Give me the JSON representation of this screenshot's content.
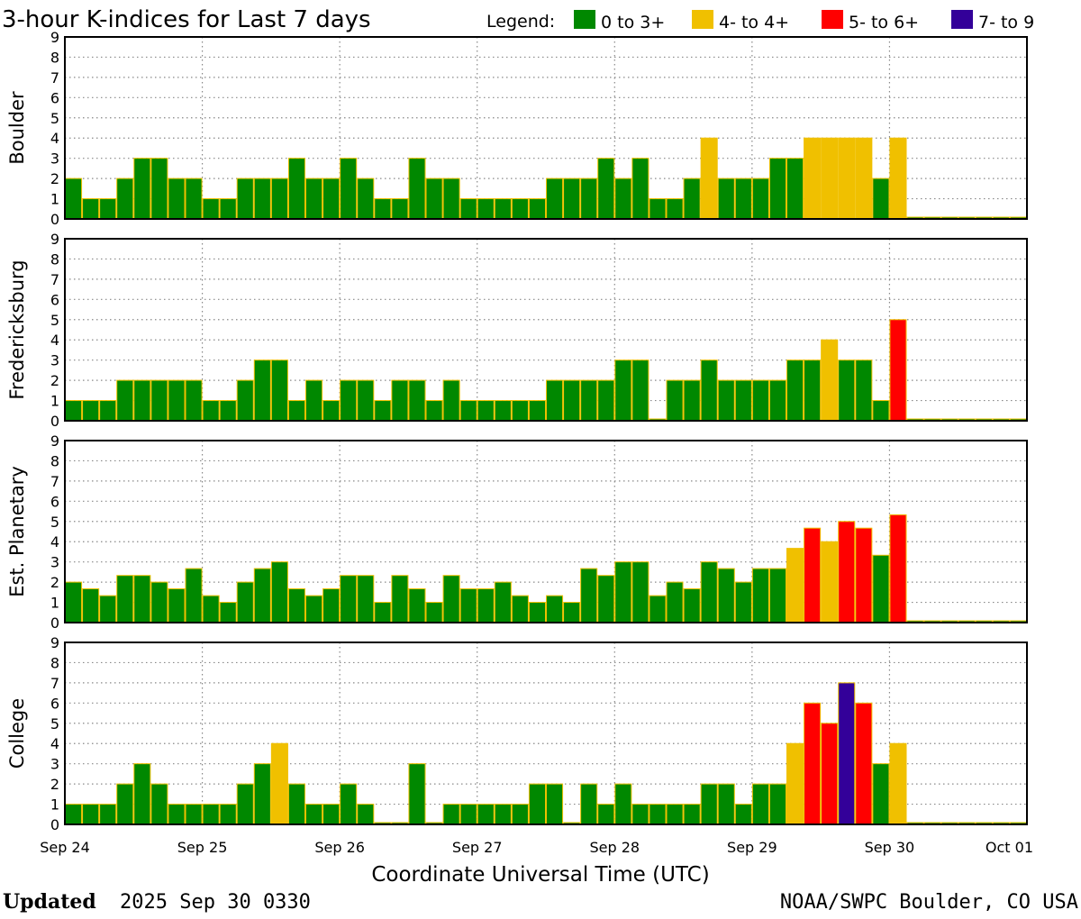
{
  "chart_data": {
    "type": "bar",
    "title": "3-hour K-indices for Last 7 days",
    "legend": {
      "label": "Legend:",
      "placement": "top-right",
      "entries": [
        {
          "label": "0 to 3+",
          "color": "#008800"
        },
        {
          "label": "4- to 4+",
          "color": "#f0c000"
        },
        {
          "label": "5- to 6+",
          "color": "#ff0000"
        },
        {
          "label": "7- to 9",
          "color": "#330099"
        }
      ]
    },
    "bar_edge_color": "#f0c000",
    "ylim": [
      0,
      9
    ],
    "yticks": [
      "0",
      "1",
      "2",
      "3",
      "4",
      "5",
      "6",
      "7",
      "8",
      "9"
    ],
    "grid": true,
    "x_tick_labels": [
      "Sep 24",
      "Sep 25",
      "Sep 26",
      "Sep 27",
      "Sep 28",
      "Sep 29",
      "Sep 30",
      "Oct 01"
    ],
    "xlabel": "Coordinate Universal Time (UTC)",
    "intervals_per_day": 8,
    "panels": [
      {
        "ylabel": "Boulder",
        "values": [
          2,
          1,
          1,
          2,
          3,
          3,
          2,
          2,
          1,
          1,
          2,
          2,
          2,
          3,
          2,
          2,
          3,
          2,
          1,
          1,
          3,
          2,
          2,
          1,
          1,
          1,
          1,
          1,
          2,
          2,
          2,
          3,
          2,
          3,
          1,
          1,
          2,
          4,
          2,
          2,
          2,
          3,
          3,
          4,
          4,
          4,
          4,
          2,
          4,
          0,
          0,
          0,
          0,
          0,
          0,
          0
        ]
      },
      {
        "ylabel": "Fredericksburg",
        "values": [
          1,
          1,
          1,
          2,
          2,
          2,
          2,
          2,
          1,
          1,
          2,
          3,
          3,
          1,
          2,
          1,
          2,
          2,
          1,
          2,
          2,
          1,
          2,
          1,
          1,
          1,
          1,
          1,
          2,
          2,
          2,
          2,
          3,
          3,
          0,
          2,
          2,
          3,
          2,
          2,
          2,
          2,
          3,
          3,
          4,
          3,
          3,
          1,
          5,
          0,
          0,
          0,
          0,
          0,
          0,
          0
        ]
      },
      {
        "ylabel": "Est. Planetary",
        "values": [
          2,
          1.67,
          1.33,
          2.33,
          2.33,
          2,
          1.67,
          2.67,
          1.33,
          1,
          2,
          2.67,
          3,
          1.67,
          1.33,
          1.67,
          2.33,
          2.33,
          1,
          2.33,
          1.67,
          1,
          2.33,
          1.67,
          1.67,
          2,
          1.33,
          1,
          1.33,
          1,
          2.67,
          2.33,
          3,
          3,
          1.33,
          2,
          1.67,
          3,
          2.67,
          2,
          2.67,
          2.67,
          3.67,
          4.67,
          4,
          5,
          4.67,
          3.33,
          5.33,
          0,
          0,
          0,
          0,
          0,
          0,
          0
        ]
      },
      {
        "ylabel": "College",
        "values": [
          1,
          1,
          1,
          2,
          3,
          2,
          1,
          1,
          1,
          1,
          2,
          3,
          4,
          2,
          1,
          1,
          2,
          1,
          0,
          0,
          3,
          0,
          1,
          1,
          1,
          1,
          1,
          2,
          2,
          0,
          2,
          1,
          2,
          1,
          1,
          1,
          1,
          2,
          2,
          1,
          2,
          2,
          4,
          6,
          5,
          7,
          6,
          3,
          4,
          0,
          0,
          0,
          0,
          0,
          0,
          0
        ]
      }
    ]
  },
  "footer": {
    "updated_label": "Updated",
    "updated_value": "2025 Sep 30 0330",
    "source": "NOAA/SWPC Boulder, CO USA"
  }
}
